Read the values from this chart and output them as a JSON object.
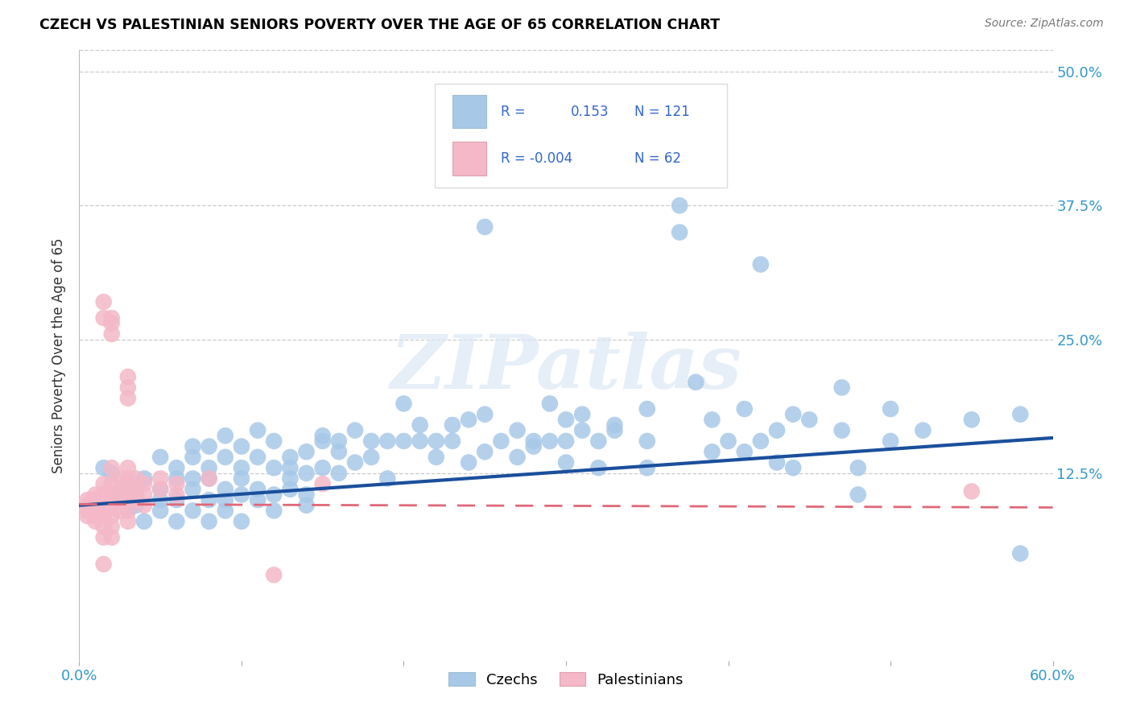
{
  "title": "CZECH VS PALESTINIAN SENIORS POVERTY OVER THE AGE OF 65 CORRELATION CHART",
  "source": "Source: ZipAtlas.com",
  "ylabel": "Seniors Poverty Over the Age of 65",
  "xlim": [
    0.0,
    0.6
  ],
  "ylim": [
    -0.05,
    0.52
  ],
  "ytick_positions": [
    0.125,
    0.25,
    0.375,
    0.5
  ],
  "ytick_labels": [
    "12.5%",
    "25.0%",
    "37.5%",
    "50.0%"
  ],
  "czech_color": "#a8c8e8",
  "palestinian_color": "#f4b8c8",
  "czech_line_color": "#1a4f9c",
  "palestinian_line_color": "#e06878",
  "czech_line_x0": 0.0,
  "czech_line_y0": 0.095,
  "czech_line_x1": 0.6,
  "czech_line_y1": 0.158,
  "pal_line_x0": 0.0,
  "pal_line_y0": 0.096,
  "pal_line_x1": 0.6,
  "pal_line_y1": 0.093,
  "watermark": "ZIPatlas",
  "czech_points": [
    [
      0.015,
      0.13
    ],
    [
      0.02,
      0.125
    ],
    [
      0.025,
      0.1
    ],
    [
      0.025,
      0.105
    ],
    [
      0.03,
      0.1
    ],
    [
      0.03,
      0.115
    ],
    [
      0.03,
      0.09
    ],
    [
      0.03,
      0.095
    ],
    [
      0.035,
      0.105
    ],
    [
      0.035,
      0.095
    ],
    [
      0.04,
      0.08
    ],
    [
      0.04,
      0.12
    ],
    [
      0.05,
      0.09
    ],
    [
      0.05,
      0.14
    ],
    [
      0.05,
      0.11
    ],
    [
      0.05,
      0.1
    ],
    [
      0.06,
      0.1
    ],
    [
      0.06,
      0.13
    ],
    [
      0.06,
      0.12
    ],
    [
      0.06,
      0.08
    ],
    [
      0.07,
      0.11
    ],
    [
      0.07,
      0.09
    ],
    [
      0.07,
      0.14
    ],
    [
      0.07,
      0.15
    ],
    [
      0.07,
      0.12
    ],
    [
      0.08,
      0.1
    ],
    [
      0.08,
      0.13
    ],
    [
      0.08,
      0.12
    ],
    [
      0.08,
      0.08
    ],
    [
      0.08,
      0.15
    ],
    [
      0.09,
      0.11
    ],
    [
      0.09,
      0.14
    ],
    [
      0.09,
      0.1
    ],
    [
      0.09,
      0.09
    ],
    [
      0.09,
      0.16
    ],
    [
      0.1,
      0.12
    ],
    [
      0.1,
      0.15
    ],
    [
      0.1,
      0.13
    ],
    [
      0.1,
      0.08
    ],
    [
      0.1,
      0.105
    ],
    [
      0.11,
      0.14
    ],
    [
      0.11,
      0.11
    ],
    [
      0.11,
      0.165
    ],
    [
      0.11,
      0.1
    ],
    [
      0.12,
      0.13
    ],
    [
      0.12,
      0.155
    ],
    [
      0.12,
      0.09
    ],
    [
      0.12,
      0.105
    ],
    [
      0.13,
      0.14
    ],
    [
      0.13,
      0.12
    ],
    [
      0.13,
      0.11
    ],
    [
      0.13,
      0.13
    ],
    [
      0.14,
      0.145
    ],
    [
      0.14,
      0.125
    ],
    [
      0.14,
      0.105
    ],
    [
      0.14,
      0.095
    ],
    [
      0.15,
      0.155
    ],
    [
      0.15,
      0.16
    ],
    [
      0.15,
      0.13
    ],
    [
      0.16,
      0.155
    ],
    [
      0.16,
      0.145
    ],
    [
      0.16,
      0.125
    ],
    [
      0.17,
      0.165
    ],
    [
      0.17,
      0.135
    ],
    [
      0.18,
      0.14
    ],
    [
      0.18,
      0.155
    ],
    [
      0.19,
      0.155
    ],
    [
      0.19,
      0.12
    ],
    [
      0.2,
      0.19
    ],
    [
      0.2,
      0.155
    ],
    [
      0.21,
      0.155
    ],
    [
      0.21,
      0.17
    ],
    [
      0.22,
      0.155
    ],
    [
      0.22,
      0.14
    ],
    [
      0.23,
      0.17
    ],
    [
      0.23,
      0.155
    ],
    [
      0.24,
      0.175
    ],
    [
      0.24,
      0.135
    ],
    [
      0.25,
      0.355
    ],
    [
      0.25,
      0.18
    ],
    [
      0.25,
      0.145
    ],
    [
      0.26,
      0.155
    ],
    [
      0.27,
      0.165
    ],
    [
      0.27,
      0.14
    ],
    [
      0.28,
      0.155
    ],
    [
      0.28,
      0.15
    ],
    [
      0.29,
      0.155
    ],
    [
      0.29,
      0.19
    ],
    [
      0.3,
      0.135
    ],
    [
      0.3,
      0.175
    ],
    [
      0.3,
      0.155
    ],
    [
      0.31,
      0.165
    ],
    [
      0.31,
      0.18
    ],
    [
      0.32,
      0.155
    ],
    [
      0.32,
      0.13
    ],
    [
      0.33,
      0.165
    ],
    [
      0.33,
      0.17
    ],
    [
      0.35,
      0.155
    ],
    [
      0.35,
      0.185
    ],
    [
      0.35,
      0.13
    ],
    [
      0.36,
      0.435
    ],
    [
      0.37,
      0.4
    ],
    [
      0.37,
      0.375
    ],
    [
      0.37,
      0.35
    ],
    [
      0.38,
      0.21
    ],
    [
      0.39,
      0.145
    ],
    [
      0.39,
      0.175
    ],
    [
      0.4,
      0.155
    ],
    [
      0.41,
      0.145
    ],
    [
      0.41,
      0.185
    ],
    [
      0.42,
      0.32
    ],
    [
      0.42,
      0.155
    ],
    [
      0.43,
      0.165
    ],
    [
      0.43,
      0.135
    ],
    [
      0.44,
      0.13
    ],
    [
      0.44,
      0.18
    ],
    [
      0.45,
      0.175
    ],
    [
      0.47,
      0.205
    ],
    [
      0.47,
      0.165
    ],
    [
      0.48,
      0.13
    ],
    [
      0.48,
      0.105
    ],
    [
      0.5,
      0.185
    ],
    [
      0.5,
      0.155
    ],
    [
      0.52,
      0.165
    ],
    [
      0.55,
      0.175
    ],
    [
      0.58,
      0.18
    ],
    [
      0.58,
      0.05
    ]
  ],
  "palestinian_points": [
    [
      0.005,
      0.1
    ],
    [
      0.005,
      0.095
    ],
    [
      0.005,
      0.09
    ],
    [
      0.005,
      0.085
    ],
    [
      0.008,
      0.1
    ],
    [
      0.008,
      0.095
    ],
    [
      0.008,
      0.09
    ],
    [
      0.01,
      0.105
    ],
    [
      0.01,
      0.1
    ],
    [
      0.01,
      0.095
    ],
    [
      0.01,
      0.085
    ],
    [
      0.01,
      0.08
    ],
    [
      0.01,
      0.1
    ],
    [
      0.01,
      0.09
    ],
    [
      0.012,
      0.1
    ],
    [
      0.012,
      0.095
    ],
    [
      0.015,
      0.285
    ],
    [
      0.015,
      0.27
    ],
    [
      0.015,
      0.115
    ],
    [
      0.015,
      0.105
    ],
    [
      0.015,
      0.095
    ],
    [
      0.015,
      0.085
    ],
    [
      0.015,
      0.075
    ],
    [
      0.015,
      0.065
    ],
    [
      0.015,
      0.04
    ],
    [
      0.02,
      0.27
    ],
    [
      0.02,
      0.265
    ],
    [
      0.02,
      0.255
    ],
    [
      0.02,
      0.13
    ],
    [
      0.02,
      0.115
    ],
    [
      0.02,
      0.105
    ],
    [
      0.02,
      0.095
    ],
    [
      0.02,
      0.085
    ],
    [
      0.02,
      0.075
    ],
    [
      0.02,
      0.065
    ],
    [
      0.025,
      0.12
    ],
    [
      0.025,
      0.11
    ],
    [
      0.025,
      0.1
    ],
    [
      0.025,
      0.09
    ],
    [
      0.03,
      0.215
    ],
    [
      0.03,
      0.205
    ],
    [
      0.03,
      0.195
    ],
    [
      0.03,
      0.13
    ],
    [
      0.03,
      0.12
    ],
    [
      0.03,
      0.11
    ],
    [
      0.03,
      0.1
    ],
    [
      0.03,
      0.09
    ],
    [
      0.03,
      0.08
    ],
    [
      0.035,
      0.12
    ],
    [
      0.035,
      0.11
    ],
    [
      0.035,
      0.1
    ],
    [
      0.04,
      0.115
    ],
    [
      0.04,
      0.105
    ],
    [
      0.04,
      0.095
    ],
    [
      0.05,
      0.12
    ],
    [
      0.05,
      0.11
    ],
    [
      0.06,
      0.115
    ],
    [
      0.06,
      0.105
    ],
    [
      0.08,
      0.12
    ],
    [
      0.12,
      0.03
    ],
    [
      0.15,
      0.115
    ],
    [
      0.55,
      0.108
    ]
  ]
}
